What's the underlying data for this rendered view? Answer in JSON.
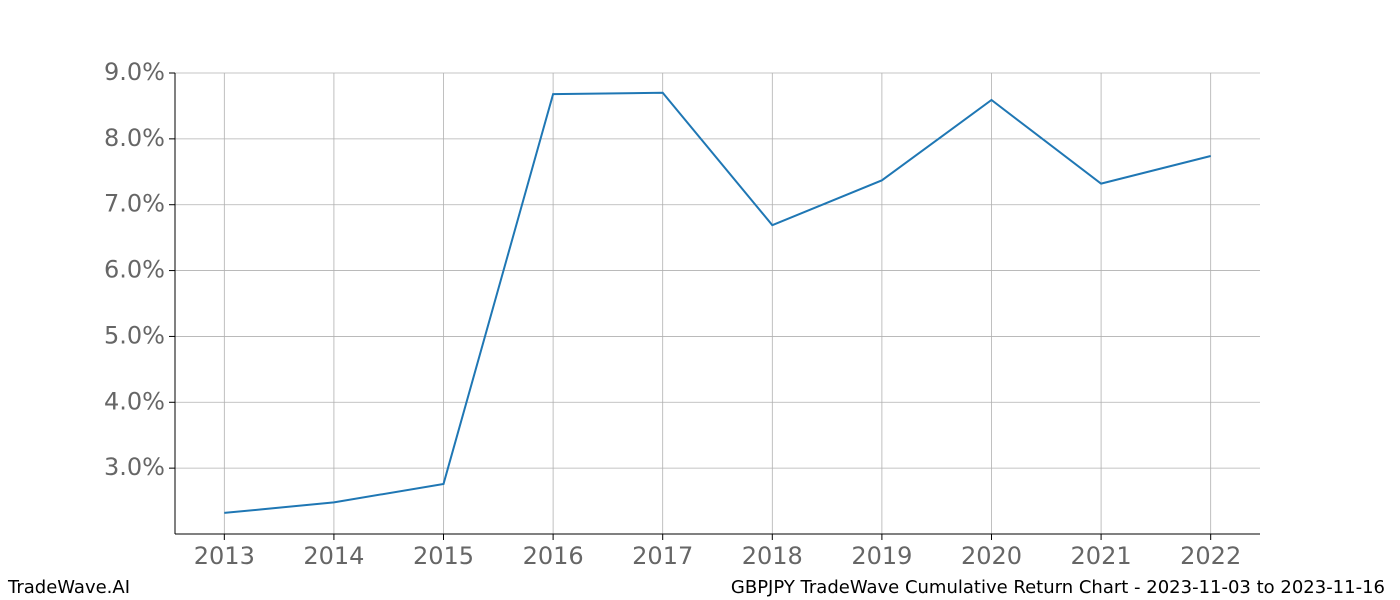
{
  "chart_data": {
    "type": "line",
    "x": [
      2013,
      2014,
      2015,
      2016,
      2017,
      2018,
      2019,
      2020,
      2021,
      2022
    ],
    "series": [
      {
        "name": "GBPJPY",
        "color": "#1f77b4",
        "values": [
          2.32,
          2.48,
          2.76,
          8.68,
          8.7,
          6.69,
          7.37,
          8.59,
          7.32,
          7.74
        ]
      }
    ],
    "xlim": [
      2012.55,
      2022.45
    ],
    "xticks": [
      2013,
      2014,
      2015,
      2016,
      2017,
      2018,
      2019,
      2020,
      2021,
      2022
    ],
    "ylim": [
      2.0,
      9.0
    ],
    "yticks": [
      {
        "value": 3,
        "label": "3.0%"
      },
      {
        "value": 4,
        "label": "4.0%"
      },
      {
        "value": 5,
        "label": "5.0%"
      },
      {
        "value": 6,
        "label": "6.0%"
      },
      {
        "value": 7,
        "label": "7.0%"
      },
      {
        "value": 8,
        "label": "8.0%"
      },
      {
        "value": 9,
        "label": "9.0%"
      }
    ],
    "grid": true
  },
  "footer": {
    "left": "TradeWave.AI",
    "right": "GBPJPY TradeWave Cumulative Return Chart - 2023-11-03 to 2023-11-16"
  }
}
